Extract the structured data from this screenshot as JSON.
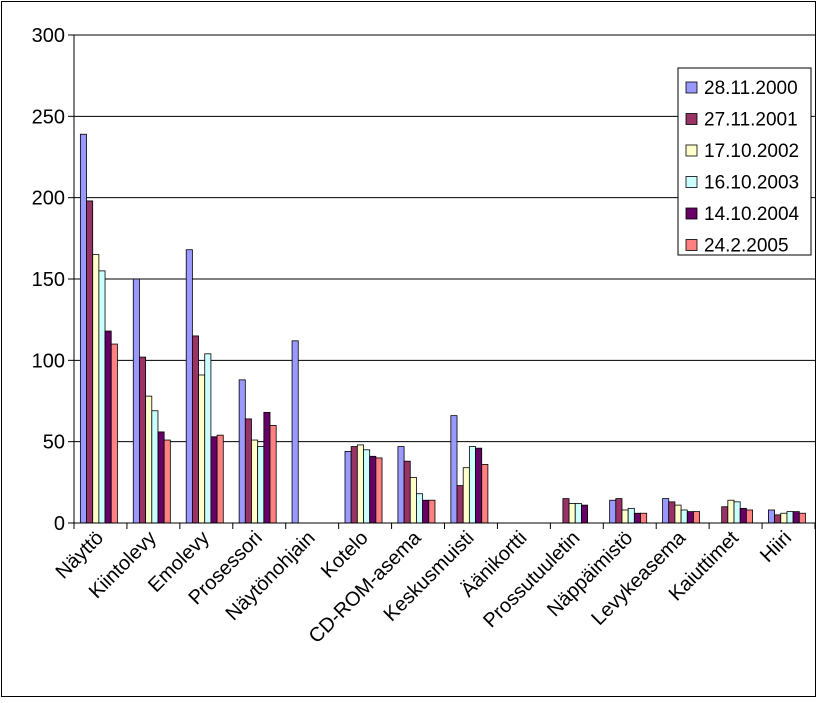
{
  "chart_data": {
    "type": "bar",
    "title": "",
    "xlabel": "",
    "ylabel": "",
    "ylim": [
      0,
      300
    ],
    "yticks": [
      0,
      50,
      100,
      150,
      200,
      250,
      300
    ],
    "grid": true,
    "legend_position": "right",
    "categories": [
      "Näyttö",
      "Kiintolevy",
      "Emolevy",
      "Prosessori",
      "Näytönohjain",
      "Kotelo",
      "CD-ROM-asema",
      "Keskusmuisti",
      "Äänikortti",
      "Prossutuuletin",
      "Näppäimistö",
      "Levykeasema",
      "Kaiuttimet",
      "Hiiri"
    ],
    "series": [
      {
        "name": "28.11.2000",
        "color": "#9999ff",
        "values": [
          239,
          150,
          168,
          88,
          112,
          44,
          47,
          66,
          null,
          null,
          14,
          15,
          null,
          8
        ]
      },
      {
        "name": "27.11.2001",
        "color": "#993366",
        "values": [
          198,
          102,
          115,
          64,
          null,
          47,
          38,
          23,
          null,
          15,
          15,
          13,
          10,
          5
        ]
      },
      {
        "name": "17.10.2002",
        "color": "#ffffcc",
        "values": [
          165,
          78,
          91,
          51,
          null,
          48,
          28,
          34,
          null,
          12,
          8,
          11,
          14,
          6
        ]
      },
      {
        "name": "16.10.2003",
        "color": "#ccffff",
        "values": [
          155,
          69,
          104,
          47,
          null,
          45,
          18,
          47,
          null,
          12,
          9,
          8,
          13,
          7
        ]
      },
      {
        "name": "14.10.2004",
        "color": "#660066",
        "values": [
          118,
          56,
          53,
          68,
          null,
          41,
          14,
          46,
          null,
          11,
          6,
          7,
          9,
          7
        ]
      },
      {
        "name": "24.2.2005",
        "color": "#ff8080",
        "values": [
          110,
          51,
          54,
          60,
          null,
          40,
          14,
          36,
          null,
          null,
          6,
          7,
          8,
          6
        ]
      }
    ]
  }
}
